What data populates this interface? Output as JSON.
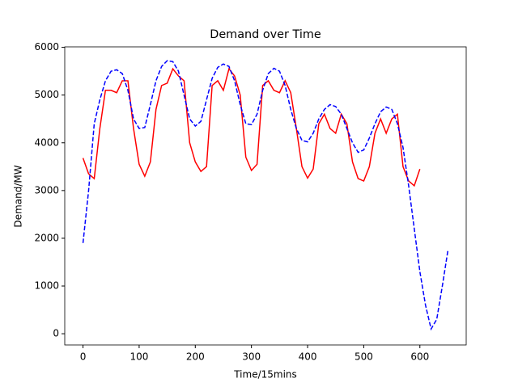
{
  "chart_data": {
    "type": "line",
    "title": "Demand over Time",
    "x_label": "Time/15mins",
    "y_label": "Demand/MW",
    "xlim": [
      -32.5,
      682.5
    ],
    "xticks": [
      0,
      100,
      200,
      300,
      400,
      500,
      600
    ],
    "ylim": [
      -235,
      6010
    ],
    "yticks": [
      0,
      1000,
      2000,
      3000,
      4000,
      5000,
      6000
    ],
    "series": [
      {
        "color": "#ff0000",
        "style": "solid",
        "x": [
          0,
          10,
          20,
          30,
          40,
          50,
          60,
          70,
          80,
          90,
          100,
          110,
          120,
          130,
          140,
          150,
          160,
          170,
          180,
          190,
          200,
          210,
          220,
          230,
          240,
          250,
          260,
          270,
          280,
          290,
          300,
          310,
          320,
          330,
          340,
          350,
          360,
          370,
          380,
          390,
          400,
          410,
          420,
          430,
          440,
          450,
          460,
          470,
          480,
          490,
          500,
          510,
          520,
          530,
          540,
          550,
          560,
          570,
          580,
          590,
          600
        ],
        "values": [
          3680,
          3350,
          3250,
          4300,
          5100,
          5100,
          5050,
          5300,
          5300,
          4300,
          3550,
          3300,
          3600,
          4700,
          5200,
          5250,
          5550,
          5400,
          5300,
          4000,
          3600,
          3400,
          3500,
          5200,
          5300,
          5100,
          5550,
          5400,
          5000,
          3700,
          3420,
          3550,
          5200,
          5300,
          5100,
          5050,
          5300,
          5050,
          4300,
          3500,
          3260,
          3450,
          4400,
          4600,
          4300,
          4200,
          4600,
          4400,
          3600,
          3250,
          3200,
          3500,
          4200,
          4500,
          4200,
          4500,
          4600,
          3500,
          3200,
          3100,
          3450
        ]
      },
      {
        "color": "#0000ff",
        "style": "dashed",
        "x": [
          0,
          10,
          20,
          30,
          40,
          50,
          60,
          70,
          80,
          90,
          100,
          110,
          120,
          130,
          140,
          150,
          160,
          170,
          180,
          190,
          200,
          210,
          220,
          230,
          240,
          250,
          260,
          270,
          280,
          290,
          300,
          310,
          320,
          330,
          340,
          350,
          360,
          370,
          380,
          390,
          400,
          410,
          420,
          430,
          440,
          450,
          460,
          470,
          480,
          490,
          500,
          510,
          520,
          530,
          540,
          550,
          560,
          570,
          580,
          590,
          600,
          610,
          620,
          630,
          640,
          650
        ],
        "values": [
          1900,
          3000,
          4400,
          4900,
          5300,
          5500,
          5530,
          5450,
          5100,
          4500,
          4300,
          4320,
          4800,
          5300,
          5600,
          5720,
          5700,
          5500,
          5000,
          4500,
          4350,
          4450,
          4900,
          5350,
          5580,
          5650,
          5600,
          5300,
          4800,
          4400,
          4380,
          4600,
          5100,
          5450,
          5560,
          5500,
          5200,
          4700,
          4300,
          4050,
          4020,
          4200,
          4500,
          4700,
          4800,
          4760,
          4600,
          4300,
          4000,
          3800,
          3850,
          4100,
          4400,
          4650,
          4750,
          4700,
          4400,
          3900,
          3100,
          2200,
          1300,
          600,
          100,
          300,
          1000,
          1750
        ]
      }
    ]
  }
}
